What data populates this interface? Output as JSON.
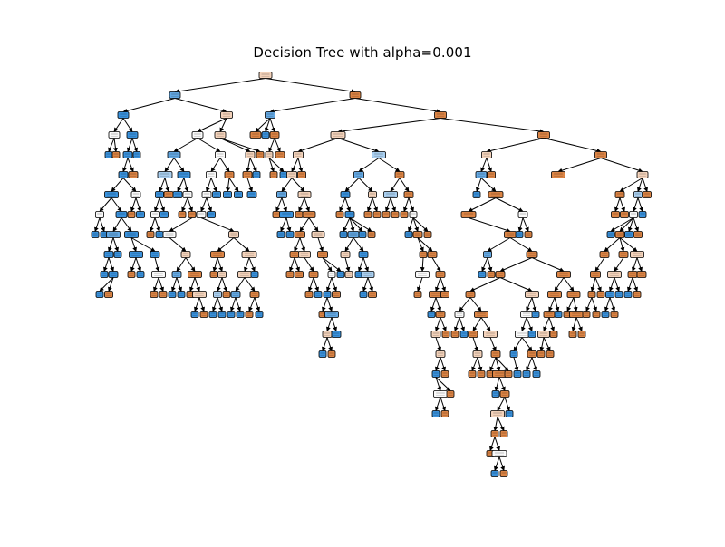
{
  "figure": {
    "title": "Decision Tree with alpha=0.001"
  },
  "colors": {
    "orange_dark": "#dd8545",
    "orange_mid": "#e8a774",
    "orange_light": "#f4d3bb",
    "white": "#fbfbfb",
    "blue_light": "#a9cff0",
    "blue_mid": "#64a9e4",
    "blue_dark": "#3a92dd",
    "edge": "#000000"
  }
}
